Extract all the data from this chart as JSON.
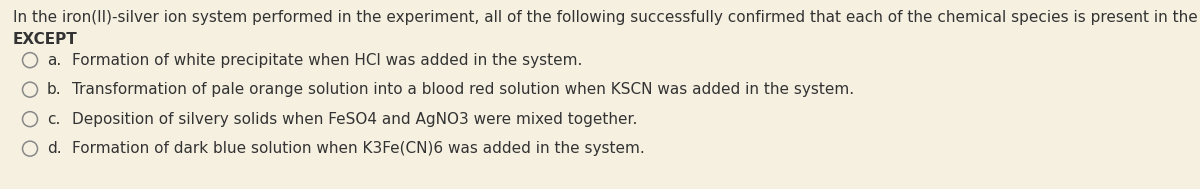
{
  "background_color": "#f5f0e0",
  "text_color": "#333333",
  "font_size_main": 11.0,
  "font_size_options": 11.0,
  "question_line1": "In the iron(II)-silver ion system performed in the experiment, all of the following successfully confirmed that each of the chemical species is present in the system",
  "question_line2": "EXCEPT",
  "options": [
    {
      "label": "a.",
      "text": "Formation of white precipitate when HCl was added in the system."
    },
    {
      "label": "b.",
      "text": "Transformation of pale orange solution into a blood red solution when KSCN was added in the system."
    },
    {
      "label": "c.",
      "text": "Deposition of silvery solids when FeSO4 and AgNO3 were mixed together."
    },
    {
      "label": "d.",
      "text": "Formation of dark blue solution when K3Fe(CN)6 was added in the system."
    }
  ],
  "circle_color": "#888888",
  "figsize": [
    12.0,
    1.89
  ],
  "dpi": 100
}
